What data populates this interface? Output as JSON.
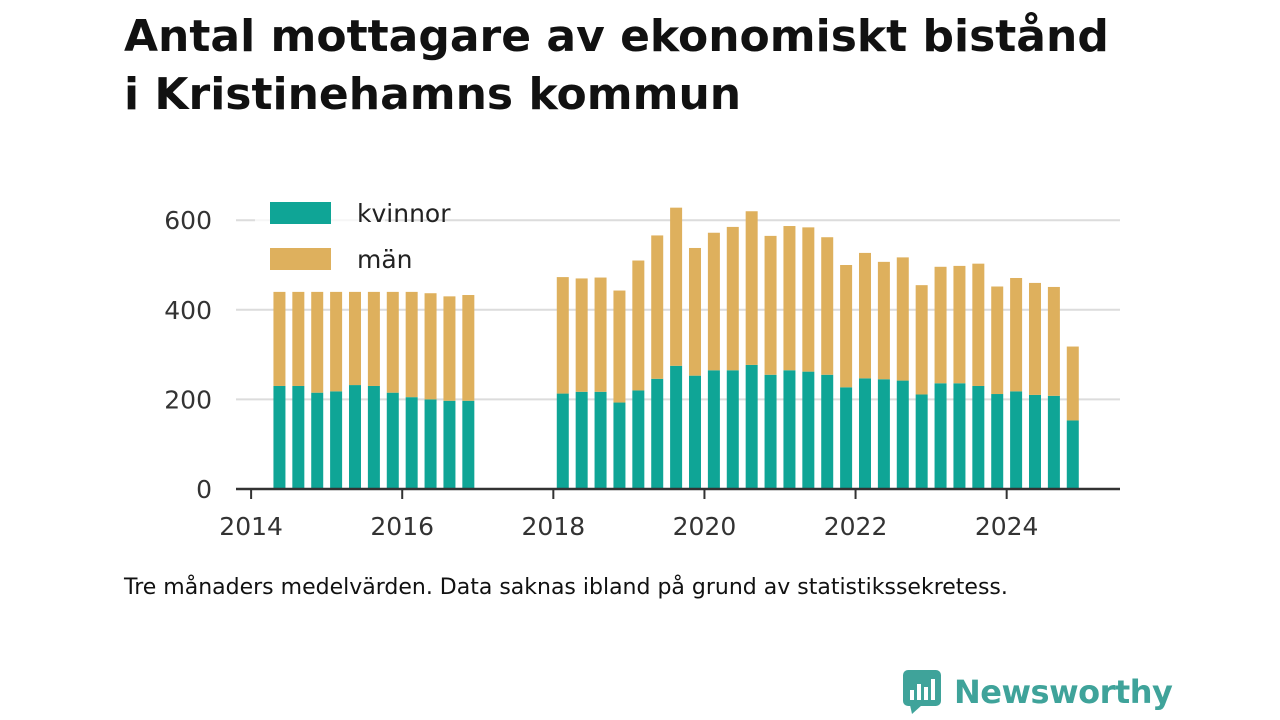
{
  "title_lines": [
    "Antal mottagare av ekonomiskt bistånd",
    "i Kristinehamns kommun"
  ],
  "caption": "Tre månaders medelvärden. Data saknas ibland på grund av statistikssekretess.",
  "brand": {
    "name": "Newsworthy",
    "icon": "newsworthy-logo-icon",
    "color": "#3fa39a"
  },
  "colors": {
    "kvinnor": "#0fa596",
    "man": "#deb05d",
    "grid": "#dcdcdc",
    "axis": "#333333"
  },
  "chart_data": {
    "type": "bar",
    "stacked": true,
    "x_unit": "year",
    "xlim": [
      2013.8,
      2025.5
    ],
    "ylim": [
      0,
      650
    ],
    "yticks": [
      0,
      200,
      400,
      600
    ],
    "xticks": [
      "2014",
      "2016",
      "2018",
      "2020",
      "2022",
      "2024"
    ],
    "grid": true,
    "legend_position": "top-left",
    "series": [
      {
        "name": "kvinnor",
        "color": "#0fa596"
      },
      {
        "name": "män",
        "color": "#deb05d"
      }
    ],
    "points": [
      {
        "x": 2014.375,
        "kvinnor": 230,
        "man": 210
      },
      {
        "x": 2014.625,
        "kvinnor": 230,
        "man": 210
      },
      {
        "x": 2014.875,
        "kvinnor": 215,
        "man": 225
      },
      {
        "x": 2015.125,
        "kvinnor": 218,
        "man": 222
      },
      {
        "x": 2015.375,
        "kvinnor": 232,
        "man": 208
      },
      {
        "x": 2015.625,
        "kvinnor": 230,
        "man": 210
      },
      {
        "x": 2015.875,
        "kvinnor": 215,
        "man": 225
      },
      {
        "x": 2016.125,
        "kvinnor": 205,
        "man": 235
      },
      {
        "x": 2016.375,
        "kvinnor": 200,
        "man": 237
      },
      {
        "x": 2016.625,
        "kvinnor": 197,
        "man": 233
      },
      {
        "x": 2016.875,
        "kvinnor": 197,
        "man": 236
      },
      {
        "x": 2018.125,
        "kvinnor": 213,
        "man": 260
      },
      {
        "x": 2018.375,
        "kvinnor": 217,
        "man": 253
      },
      {
        "x": 2018.625,
        "kvinnor": 217,
        "man": 255
      },
      {
        "x": 2018.875,
        "kvinnor": 193,
        "man": 250
      },
      {
        "x": 2019.125,
        "kvinnor": 220,
        "man": 290
      },
      {
        "x": 2019.375,
        "kvinnor": 246,
        "man": 320
      },
      {
        "x": 2019.625,
        "kvinnor": 275,
        "man": 353
      },
      {
        "x": 2019.875,
        "kvinnor": 253,
        "man": 285
      },
      {
        "x": 2020.125,
        "kvinnor": 265,
        "man": 307
      },
      {
        "x": 2020.375,
        "kvinnor": 265,
        "man": 320
      },
      {
        "x": 2020.625,
        "kvinnor": 277,
        "man": 343
      },
      {
        "x": 2020.875,
        "kvinnor": 255,
        "man": 310
      },
      {
        "x": 2021.125,
        "kvinnor": 265,
        "man": 322
      },
      {
        "x": 2021.375,
        "kvinnor": 262,
        "man": 322
      },
      {
        "x": 2021.625,
        "kvinnor": 255,
        "man": 307
      },
      {
        "x": 2021.875,
        "kvinnor": 227,
        "man": 273
      },
      {
        "x": 2022.125,
        "kvinnor": 247,
        "man": 280
      },
      {
        "x": 2022.375,
        "kvinnor": 245,
        "man": 262
      },
      {
        "x": 2022.625,
        "kvinnor": 242,
        "man": 275
      },
      {
        "x": 2022.875,
        "kvinnor": 211,
        "man": 244
      },
      {
        "x": 2023.125,
        "kvinnor": 236,
        "man": 260
      },
      {
        "x": 2023.375,
        "kvinnor": 236,
        "man": 262
      },
      {
        "x": 2023.625,
        "kvinnor": 230,
        "man": 273
      },
      {
        "x": 2023.875,
        "kvinnor": 212,
        "man": 240
      },
      {
        "x": 2024.125,
        "kvinnor": 218,
        "man": 253
      },
      {
        "x": 2024.375,
        "kvinnor": 210,
        "man": 250
      },
      {
        "x": 2024.625,
        "kvinnor": 208,
        "man": 243
      },
      {
        "x": 2024.875,
        "kvinnor": 153,
        "man": 165
      }
    ]
  }
}
